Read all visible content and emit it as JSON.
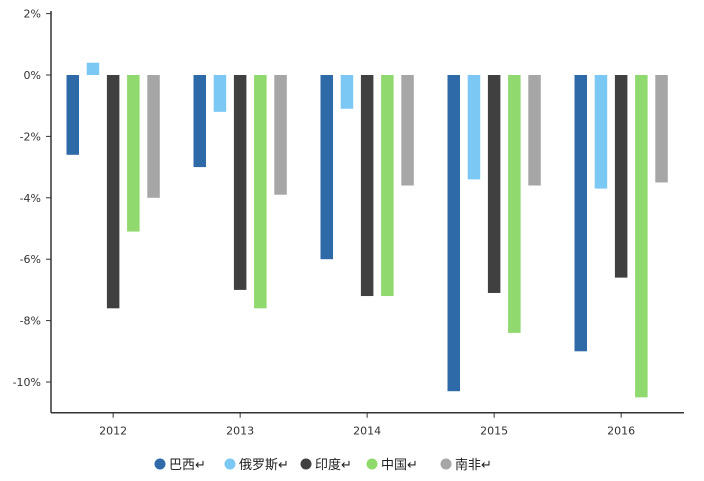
{
  "chart_data": {
    "type": "bar",
    "title": "",
    "xlabel": "",
    "ylabel": "",
    "categories": [
      "2012",
      "2013",
      "2014",
      "2015",
      "2016"
    ],
    "ylim": [
      -11,
      2
    ],
    "yticks": [
      2,
      0,
      -2,
      -4,
      -6,
      -8,
      -10
    ],
    "ytick_labels": [
      "2%",
      "0%",
      "-2%",
      "-4%",
      "-6%",
      "-8%",
      "-10%"
    ],
    "grid": false,
    "legend_position": "bottom",
    "series": [
      {
        "name": "巴西↵",
        "color": "#2f6aa8",
        "values": [
          -2.6,
          -3.0,
          -6.0,
          -10.3,
          -9.0
        ]
      },
      {
        "name": "俄罗斯↵",
        "color": "#7cc8f4",
        "values": [
          0.4,
          -1.2,
          -1.1,
          -3.4,
          -3.7
        ]
      },
      {
        "name": "印度↵",
        "color": "#404040",
        "values": [
          -7.6,
          -7.0,
          -7.2,
          -7.1,
          -6.6
        ]
      },
      {
        "name": "中国↵",
        "color": "#8fd96e",
        "values": [
          -5.1,
          -7.6,
          -7.2,
          -8.4,
          -10.5
        ]
      },
      {
        "name": "南非↵",
        "color": "#a6a6a6",
        "values": [
          -4.0,
          -3.9,
          -3.6,
          -3.6,
          -3.5
        ]
      }
    ]
  }
}
